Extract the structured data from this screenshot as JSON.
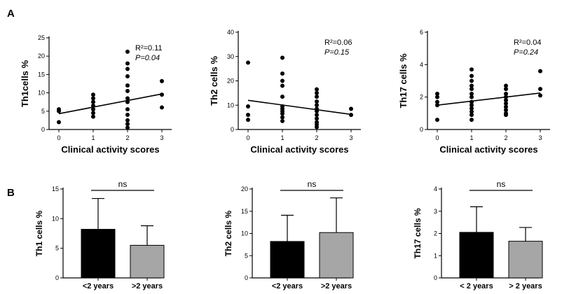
{
  "panels": {
    "a": "A",
    "b": "B"
  },
  "chart_data": [
    {
      "type": "scatter",
      "ylabel": "Th1cells %",
      "xlabel": "Clinical activity scores",
      "xlim": [
        0,
        3
      ],
      "xticks": [
        0,
        1,
        2,
        3
      ],
      "ylim": [
        0,
        25
      ],
      "yticks": [
        0,
        5,
        10,
        15,
        20,
        25
      ],
      "annotation": [
        "R²=0.11",
        "P=0.04"
      ],
      "points": [
        [
          0,
          2.0
        ],
        [
          0,
          5.0
        ],
        [
          0,
          5.5
        ],
        [
          1,
          3.5
        ],
        [
          1,
          4.5
        ],
        [
          1,
          5.5
        ],
        [
          1,
          6.5
        ],
        [
          1,
          7.5
        ],
        [
          1,
          8.5
        ],
        [
          1,
          9.5
        ],
        [
          2,
          0.5
        ],
        [
          2,
          1.5
        ],
        [
          2,
          2.5
        ],
        [
          2,
          4.0
        ],
        [
          2,
          5.5
        ],
        [
          2,
          7.5
        ],
        [
          2,
          8.5
        ],
        [
          2,
          10.5
        ],
        [
          2,
          12.0
        ],
        [
          2,
          14.5
        ],
        [
          2,
          16.5
        ],
        [
          2,
          18.0
        ],
        [
          2,
          21.2
        ],
        [
          3,
          6.0
        ],
        [
          3,
          9.5
        ],
        [
          3,
          13.2
        ]
      ],
      "trendline": [
        [
          0,
          4.3
        ],
        [
          3,
          9.7
        ]
      ]
    },
    {
      "type": "scatter",
      "ylabel": "Th2 cells %",
      "xlabel": "Clinical activity scores",
      "xlim": [
        0,
        3
      ],
      "xticks": [
        0,
        1,
        2,
        3
      ],
      "ylim": [
        0,
        40
      ],
      "yticks": [
        0,
        10,
        20,
        30,
        40
      ],
      "annotation": [
        "R²=0.06",
        "P=0.15"
      ],
      "points": [
        [
          0,
          4.0
        ],
        [
          0,
          6.0
        ],
        [
          0,
          9.5
        ],
        [
          0,
          27.5
        ],
        [
          1,
          3.5
        ],
        [
          1,
          5.0
        ],
        [
          1,
          6.5
        ],
        [
          1,
          7.5
        ],
        [
          1,
          8.5
        ],
        [
          1,
          9.5
        ],
        [
          1,
          13.5
        ],
        [
          1,
          18.0
        ],
        [
          1,
          20.0
        ],
        [
          1,
          23.0
        ],
        [
          1,
          29.5
        ],
        [
          2,
          1.0
        ],
        [
          2,
          2.0
        ],
        [
          2,
          3.0
        ],
        [
          2,
          4.5
        ],
        [
          2,
          6.0
        ],
        [
          2,
          7.5
        ],
        [
          2,
          8.5
        ],
        [
          2,
          10.0
        ],
        [
          2,
          11.5
        ],
        [
          2,
          13.5
        ],
        [
          2,
          15.0
        ],
        [
          2,
          16.5
        ],
        [
          3,
          6.0
        ],
        [
          3,
          8.5
        ]
      ],
      "trendline": [
        [
          0,
          12.0
        ],
        [
          3,
          6.2
        ]
      ]
    },
    {
      "type": "scatter",
      "ylabel": "Th17 cells %",
      "xlabel": "Clinical activity scores",
      "xlim": [
        0,
        3
      ],
      "xticks": [
        0,
        1,
        2,
        3
      ],
      "ylim": [
        0,
        6
      ],
      "yticks": [
        0,
        2,
        4,
        6
      ],
      "annotation": [
        "R²=0.04",
        "P=0.24"
      ],
      "points": [
        [
          0,
          0.6
        ],
        [
          0,
          1.5
        ],
        [
          0,
          1.7
        ],
        [
          0,
          2.0
        ],
        [
          0,
          2.2
        ],
        [
          1,
          0.6
        ],
        [
          1,
          0.9
        ],
        [
          1,
          1.1
        ],
        [
          1,
          1.3
        ],
        [
          1,
          1.5
        ],
        [
          1,
          1.7
        ],
        [
          1,
          2.0
        ],
        [
          1,
          2.2
        ],
        [
          1,
          2.5
        ],
        [
          1,
          2.7
        ],
        [
          1,
          3.0
        ],
        [
          1,
          3.3
        ],
        [
          1,
          3.7
        ],
        [
          2,
          0.9
        ],
        [
          2,
          1.0
        ],
        [
          2,
          1.2
        ],
        [
          2,
          1.4
        ],
        [
          2,
          1.6
        ],
        [
          2,
          1.8
        ],
        [
          2,
          2.0
        ],
        [
          2,
          2.2
        ],
        [
          2,
          2.5
        ],
        [
          2,
          2.7
        ],
        [
          3,
          2.1
        ],
        [
          3,
          2.5
        ],
        [
          3,
          3.6
        ]
      ],
      "trendline": [
        [
          0,
          1.5
        ],
        [
          3,
          2.25
        ]
      ]
    },
    {
      "type": "bar",
      "ylabel": "Th1 cells %",
      "categories": [
        "<2 years",
        ">2 years"
      ],
      "values": [
        8.2,
        5.5
      ],
      "errors": [
        5.2,
        3.3
      ],
      "colors": [
        "#000000",
        "#a6a6a6"
      ],
      "ylim": [
        0,
        15
      ],
      "yticks": [
        0,
        5,
        10,
        15
      ],
      "significance": "ns"
    },
    {
      "type": "bar",
      "ylabel": "Th2 cells %",
      "categories": [
        "<2 years",
        ">2 years"
      ],
      "values": [
        8.2,
        10.2
      ],
      "errors": [
        5.9,
        7.8
      ],
      "colors": [
        "#000000",
        "#a6a6a6"
      ],
      "ylim": [
        0,
        20
      ],
      "yticks": [
        0,
        5,
        10,
        15,
        20
      ],
      "significance": "ns"
    },
    {
      "type": "bar",
      "ylabel": "Th17 cells %",
      "categories": [
        "< 2 years",
        "> 2 years"
      ],
      "values": [
        2.05,
        1.65
      ],
      "errors": [
        1.15,
        0.62
      ],
      "colors": [
        "#000000",
        "#a6a6a6"
      ],
      "ylim": [
        0,
        4
      ],
      "yticks": [
        0,
        1,
        2,
        3,
        4
      ],
      "significance": "ns"
    }
  ]
}
